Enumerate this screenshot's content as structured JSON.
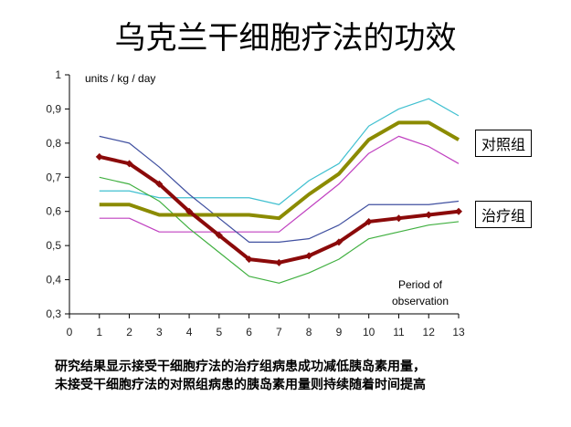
{
  "title": "乌克兰干细胞疗法的功效",
  "caption": {
    "line1": "研究结果显示接受干细胞疗法的治疗组病患成功减低胰岛素用量，",
    "line2": "未接受干细胞疗法的对照组病患的胰岛素用量则持续随着时间提高"
  },
  "chart_data": {
    "type": "line",
    "ylabel": "units / kg / day",
    "xlabel_line1": "Period of",
    "xlabel_line2": "observation",
    "x_ticks": [
      "0",
      "1",
      "2",
      "3",
      "4",
      "5",
      "6",
      "7",
      "8",
      "9",
      "10",
      "11",
      "12",
      "13"
    ],
    "y_ticks": [
      "0,3",
      "0,4",
      "0,5",
      "0,6",
      "0,7",
      "0,8",
      "0,9",
      "1"
    ],
    "xlim": [
      0,
      13
    ],
    "ylim": [
      0.3,
      1.0
    ],
    "x": [
      1,
      2,
      3,
      4,
      5,
      6,
      7,
      8,
      9,
      10,
      11,
      12,
      13
    ],
    "legend": {
      "control": "对照组",
      "treatment": "治疗组"
    },
    "series": [
      {
        "name": "对照组",
        "role": "control-mean",
        "color": "#8B8B00",
        "values": [
          0.62,
          0.62,
          0.59,
          0.59,
          0.59,
          0.59,
          0.58,
          0.65,
          0.71,
          0.81,
          0.86,
          0.86,
          0.81
        ]
      },
      {
        "role": "control-upper",
        "color": "#40C0D0",
        "values": [
          0.66,
          0.66,
          0.64,
          0.64,
          0.64,
          0.64,
          0.62,
          0.69,
          0.74,
          0.85,
          0.9,
          0.93,
          0.88
        ]
      },
      {
        "role": "control-lower",
        "color": "#C040C0",
        "values": [
          0.58,
          0.58,
          0.54,
          0.54,
          0.54,
          0.54,
          0.54,
          0.61,
          0.68,
          0.77,
          0.82,
          0.79,
          0.74
        ]
      },
      {
        "name": "治疗组",
        "role": "treatment-mean",
        "color": "#8B0A0A",
        "values": [
          0.76,
          0.74,
          0.68,
          0.6,
          0.53,
          0.46,
          0.45,
          0.47,
          0.51,
          0.57,
          0.58,
          0.59,
          0.6
        ]
      },
      {
        "role": "treatment-upper",
        "color": "#4050A0",
        "values": [
          0.82,
          0.8,
          0.73,
          0.65,
          0.58,
          0.51,
          0.51,
          0.52,
          0.56,
          0.62,
          0.62,
          0.62,
          0.63
        ]
      },
      {
        "role": "treatment-lower",
        "color": "#40B040",
        "values": [
          0.7,
          0.68,
          0.63,
          0.55,
          0.48,
          0.41,
          0.39,
          0.42,
          0.46,
          0.52,
          0.54,
          0.56,
          0.57
        ]
      }
    ]
  }
}
